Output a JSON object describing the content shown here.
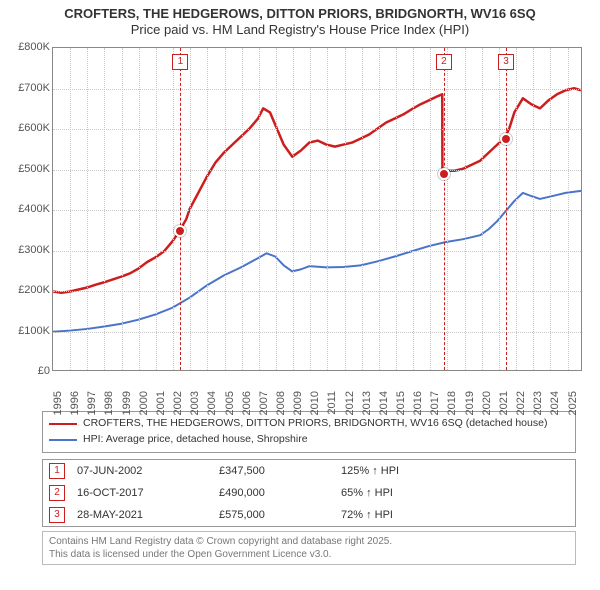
{
  "title": {
    "line1": "CROFTERS, THE HEDGEROWS, DITTON PRIORS, BRIDGNORTH, WV16 6SQ",
    "line2": "Price paid vs. HM Land Registry's House Price Index (HPI)"
  },
  "chart": {
    "type": "line",
    "background_color": "#ffffff",
    "grid_color": "#c9c9c9",
    "axis_color": "#888888",
    "x": {
      "min": 1995,
      "max": 2025.9,
      "ticks": [
        1995,
        1996,
        1997,
        1998,
        1999,
        2000,
        2001,
        2002,
        2003,
        2004,
        2005,
        2006,
        2007,
        2008,
        2009,
        2010,
        2011,
        2012,
        2013,
        2014,
        2015,
        2016,
        2017,
        2018,
        2019,
        2020,
        2021,
        2022,
        2023,
        2024,
        2025
      ],
      "tick_label_fontsize": 11,
      "tick_rotation_deg": -90
    },
    "y": {
      "min": 0,
      "max": 800000,
      "ticks": [
        0,
        100000,
        200000,
        300000,
        400000,
        500000,
        600000,
        700000,
        800000
      ],
      "tick_labels": [
        "£0",
        "£100K",
        "£200K",
        "£300K",
        "£400K",
        "£500K",
        "£600K",
        "£700K",
        "£800K"
      ],
      "tick_label_fontsize": 11
    },
    "series": [
      {
        "id": "subject",
        "label": "CROFTERS, THE HEDGEROWS, DITTON PRIORS, BRIDGNORTH, WV16 6SQ (detached house)",
        "color": "#cc1e1e",
        "line_width": 2.5,
        "points": [
          [
            1995.0,
            195000
          ],
          [
            1995.5,
            192000
          ],
          [
            1996.0,
            195000
          ],
          [
            1996.5,
            200000
          ],
          [
            1997.0,
            205000
          ],
          [
            1997.5,
            212000
          ],
          [
            1998.0,
            218000
          ],
          [
            1998.5,
            225000
          ],
          [
            1999.0,
            232000
          ],
          [
            1999.5,
            240000
          ],
          [
            2000.0,
            252000
          ],
          [
            2000.5,
            268000
          ],
          [
            2001.0,
            280000
          ],
          [
            2001.5,
            295000
          ],
          [
            2002.0,
            320000
          ],
          [
            2002.43,
            347500
          ],
          [
            2002.8,
            375000
          ],
          [
            2003.0,
            400000
          ],
          [
            2003.5,
            440000
          ],
          [
            2004.0,
            480000
          ],
          [
            2004.5,
            515000
          ],
          [
            2005.0,
            540000
          ],
          [
            2005.5,
            560000
          ],
          [
            2006.0,
            580000
          ],
          [
            2006.5,
            600000
          ],
          [
            2007.0,
            625000
          ],
          [
            2007.3,
            650000
          ],
          [
            2007.7,
            640000
          ],
          [
            2008.0,
            610000
          ],
          [
            2008.5,
            560000
          ],
          [
            2009.0,
            530000
          ],
          [
            2009.5,
            545000
          ],
          [
            2010.0,
            565000
          ],
          [
            2010.5,
            570000
          ],
          [
            2011.0,
            560000
          ],
          [
            2011.5,
            555000
          ],
          [
            2012.0,
            560000
          ],
          [
            2012.5,
            565000
          ],
          [
            2013.0,
            575000
          ],
          [
            2013.5,
            585000
          ],
          [
            2014.0,
            600000
          ],
          [
            2014.5,
            615000
          ],
          [
            2015.0,
            625000
          ],
          [
            2015.5,
            635000
          ],
          [
            2016.0,
            648000
          ],
          [
            2016.5,
            660000
          ],
          [
            2017.0,
            670000
          ],
          [
            2017.5,
            680000
          ],
          [
            2017.78,
            685000
          ],
          [
            2017.79,
            490000
          ],
          [
            2018.0,
            495000
          ],
          [
            2018.5,
            495000
          ],
          [
            2019.0,
            500000
          ],
          [
            2019.5,
            510000
          ],
          [
            2020.0,
            520000
          ],
          [
            2020.5,
            540000
          ],
          [
            2021.0,
            560000
          ],
          [
            2021.41,
            575000
          ],
          [
            2021.7,
            600000
          ],
          [
            2022.0,
            640000
          ],
          [
            2022.5,
            675000
          ],
          [
            2023.0,
            660000
          ],
          [
            2023.5,
            650000
          ],
          [
            2024.0,
            670000
          ],
          [
            2024.5,
            685000
          ],
          [
            2025.0,
            695000
          ],
          [
            2025.5,
            700000
          ],
          [
            2025.9,
            695000
          ]
        ]
      },
      {
        "id": "hpi",
        "label": "HPI: Average price, detached house, Shropshire",
        "color": "#4a74c9",
        "line_width": 2,
        "points": [
          [
            1995.0,
            95000
          ],
          [
            1996.0,
            98000
          ],
          [
            1997.0,
            102000
          ],
          [
            1998.0,
            108000
          ],
          [
            1999.0,
            115000
          ],
          [
            2000.0,
            125000
          ],
          [
            2001.0,
            138000
          ],
          [
            2002.0,
            155000
          ],
          [
            2003.0,
            180000
          ],
          [
            2004.0,
            210000
          ],
          [
            2005.0,
            235000
          ],
          [
            2006.0,
            255000
          ],
          [
            2007.0,
            278000
          ],
          [
            2007.5,
            290000
          ],
          [
            2008.0,
            282000
          ],
          [
            2008.5,
            260000
          ],
          [
            2009.0,
            245000
          ],
          [
            2009.5,
            250000
          ],
          [
            2010.0,
            258000
          ],
          [
            2011.0,
            255000
          ],
          [
            2012.0,
            256000
          ],
          [
            2013.0,
            260000
          ],
          [
            2014.0,
            270000
          ],
          [
            2015.0,
            282000
          ],
          [
            2016.0,
            295000
          ],
          [
            2017.0,
            308000
          ],
          [
            2018.0,
            318000
          ],
          [
            2019.0,
            325000
          ],
          [
            2020.0,
            335000
          ],
          [
            2020.5,
            350000
          ],
          [
            2021.0,
            370000
          ],
          [
            2021.5,
            395000
          ],
          [
            2022.0,
            420000
          ],
          [
            2022.5,
            440000
          ],
          [
            2023.0,
            432000
          ],
          [
            2023.5,
            425000
          ],
          [
            2024.0,
            430000
          ],
          [
            2024.5,
            435000
          ],
          [
            2025.0,
            440000
          ],
          [
            2025.9,
            445000
          ]
        ]
      }
    ],
    "sale_markers": [
      {
        "n": "1",
        "x": 2002.43,
        "y": 347500,
        "color": "#cc1e1e"
      },
      {
        "n": "2",
        "x": 2017.79,
        "y": 490000,
        "color": "#cc1e1e"
      },
      {
        "n": "3",
        "x": 2021.41,
        "y": 575000,
        "color": "#cc1e1e"
      }
    ]
  },
  "legend_lines": [
    {
      "color": "#cc1e1e",
      "label": "CROFTERS, THE HEDGEROWS, DITTON PRIORS, BRIDGNORTH, WV16 6SQ (detached house)"
    },
    {
      "color": "#4a74c9",
      "label": "HPI: Average price, detached house, Shropshire"
    }
  ],
  "sales_table": [
    {
      "n": "1",
      "color": "#cc1e1e",
      "date": "07-JUN-2002",
      "price": "£347,500",
      "delta": "125% ↑ HPI"
    },
    {
      "n": "2",
      "color": "#cc1e1e",
      "date": "16-OCT-2017",
      "price": "£490,000",
      "delta": "65% ↑ HPI"
    },
    {
      "n": "3",
      "color": "#cc1e1e",
      "date": "28-MAY-2021",
      "price": "£575,000",
      "delta": "72% ↑ HPI"
    }
  ],
  "footer": {
    "line1": "Contains HM Land Registry data © Crown copyright and database right 2025.",
    "line2": "This data is licensed under the Open Government Licence v3.0."
  }
}
